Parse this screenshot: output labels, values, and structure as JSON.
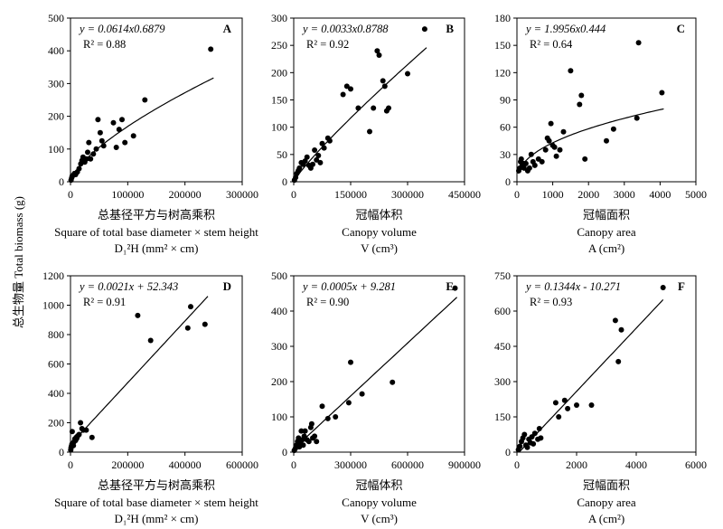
{
  "y_axis_label": "总生物量 Total  biomass (g)",
  "chart_data": [
    {
      "panel": "A",
      "type": "scatter",
      "equation": "y = 0.0614x0.6879",
      "r2": "R² = 0.88",
      "xlabel_cn": "总基径平方与树高乘积",
      "xlabel_en": "Square of total base diameter × stem height",
      "xlabel_sym": "D₁²H (mm² × cm)",
      "xlim": [
        0,
        300000
      ],
      "ylim": [
        0,
        500
      ],
      "xticks": [
        0,
        100000,
        200000,
        300000
      ],
      "yticks": [
        0,
        100,
        200,
        300,
        400,
        500
      ],
      "fit": {
        "kind": "power",
        "a": 0.0614,
        "b": 0.6879,
        "x_range": [
          2000,
          250000
        ]
      },
      "points": [
        [
          1000,
          5
        ],
        [
          2000,
          12
        ],
        [
          3000,
          18
        ],
        [
          5000,
          20
        ],
        [
          7000,
          25
        ],
        [
          9000,
          22
        ],
        [
          12000,
          30
        ],
        [
          15000,
          40
        ],
        [
          18000,
          55
        ],
        [
          20000,
          65
        ],
        [
          22000,
          75
        ],
        [
          25000,
          60
        ],
        [
          28000,
          70
        ],
        [
          30000,
          90
        ],
        [
          32000,
          120
        ],
        [
          35000,
          70
        ],
        [
          40000,
          85
        ],
        [
          45000,
          100
        ],
        [
          48000,
          190
        ],
        [
          52000,
          150
        ],
        [
          55000,
          125
        ],
        [
          58000,
          110
        ],
        [
          75000,
          180
        ],
        [
          80000,
          105
        ],
        [
          85000,
          160
        ],
        [
          90000,
          190
        ],
        [
          95000,
          120
        ],
        [
          110000,
          140
        ],
        [
          130000,
          250
        ],
        [
          245000,
          405
        ]
      ]
    },
    {
      "panel": "B",
      "type": "scatter",
      "equation": "y = 0.0033x0.8788",
      "r2": "R² = 0.92",
      "xlabel_cn": "冠幅体积",
      "xlabel_en": "Canopy volume",
      "xlabel_sym": "V (cm³)",
      "xlim": [
        0,
        450000
      ],
      "ylim": [
        0,
        300
      ],
      "xticks": [
        0,
        150000,
        300000,
        450000
      ],
      "yticks": [
        0,
        50,
        100,
        150,
        200,
        250,
        300
      ],
      "fit": {
        "kind": "power",
        "a": 0.0033,
        "b": 0.8788,
        "x_range": [
          1000,
          350000
        ]
      },
      "points": [
        [
          2000,
          3
        ],
        [
          5000,
          8
        ],
        [
          8000,
          15
        ],
        [
          12000,
          20
        ],
        [
          15000,
          25
        ],
        [
          20000,
          35
        ],
        [
          25000,
          32
        ],
        [
          30000,
          38
        ],
        [
          35000,
          45
        ],
        [
          40000,
          30
        ],
        [
          45000,
          25
        ],
        [
          50000,
          32
        ],
        [
          55000,
          58
        ],
        [
          60000,
          40
        ],
        [
          65000,
          48
        ],
        [
          70000,
          35
        ],
        [
          75000,
          70
        ],
        [
          80000,
          62
        ],
        [
          90000,
          80
        ],
        [
          95000,
          75
        ],
        [
          130000,
          160
        ],
        [
          140000,
          175
        ],
        [
          150000,
          170
        ],
        [
          170000,
          135
        ],
        [
          200000,
          92
        ],
        [
          210000,
          135
        ],
        [
          220000,
          240
        ],
        [
          225000,
          232
        ],
        [
          235000,
          185
        ],
        [
          240000,
          175
        ],
        [
          245000,
          130
        ],
        [
          250000,
          135
        ],
        [
          300000,
          198
        ],
        [
          345000,
          280
        ]
      ]
    },
    {
      "panel": "C",
      "type": "scatter",
      "equation": "y = 1.9956x0.444",
      "r2": "R² = 0.64",
      "xlabel_cn": "冠幅面积",
      "xlabel_en": "Canopy area",
      "xlabel_sym": "A (cm²)",
      "xlim": [
        0,
        5000
      ],
      "ylim": [
        0,
        180
      ],
      "xticks": [
        0,
        1000,
        2000,
        3000,
        4000,
        5000
      ],
      "yticks": [
        0,
        30,
        60,
        90,
        120,
        150,
        180
      ],
      "fit": {
        "kind": "power",
        "a": 1.9956,
        "b": 0.444,
        "x_range": [
          30,
          4100
        ]
      },
      "points": [
        [
          50,
          12
        ],
        [
          80,
          15
        ],
        [
          100,
          22
        ],
        [
          120,
          25
        ],
        [
          150,
          18
        ],
        [
          180,
          20
        ],
        [
          200,
          15
        ],
        [
          250,
          20
        ],
        [
          300,
          12
        ],
        [
          350,
          15
        ],
        [
          400,
          30
        ],
        [
          450,
          22
        ],
        [
          500,
          18
        ],
        [
          600,
          25
        ],
        [
          700,
          22
        ],
        [
          800,
          35
        ],
        [
          850,
          48
        ],
        [
          900,
          45
        ],
        [
          950,
          64
        ],
        [
          1000,
          40
        ],
        [
          1050,
          38
        ],
        [
          1100,
          28
        ],
        [
          1200,
          35
        ],
        [
          1300,
          55
        ],
        [
          1500,
          122
        ],
        [
          1750,
          85
        ],
        [
          1800,
          95
        ],
        [
          1900,
          25
        ],
        [
          2500,
          45
        ],
        [
          2700,
          58
        ],
        [
          3350,
          70
        ],
        [
          3400,
          153
        ],
        [
          4050,
          98
        ]
      ]
    },
    {
      "panel": "D",
      "type": "scatter",
      "equation": "y = 0.0021x + 52.343",
      "r2": "R² = 0.91",
      "xlabel_cn": "总基径平方与树高乘积",
      "xlabel_en": "Square of total base diameter × stem height",
      "xlabel_sym": "D₁²H (mm² × cm)",
      "xlim": [
        0,
        600000
      ],
      "ylim": [
        0,
        1200
      ],
      "xticks": [
        0,
        200000,
        400000,
        600000
      ],
      "yticks": [
        0,
        200,
        400,
        600,
        800,
        1000,
        1200
      ],
      "fit": {
        "kind": "linear",
        "a": 0.0021,
        "b": 52.343,
        "x_range": [
          0,
          480000
        ]
      },
      "points": [
        [
          1000,
          15
        ],
        [
          2000,
          30
        ],
        [
          3000,
          40
        ],
        [
          5000,
          55
        ],
        [
          6000,
          140
        ],
        [
          8000,
          60
        ],
        [
          10000,
          45
        ],
        [
          12000,
          70
        ],
        [
          15000,
          90
        ],
        [
          18000,
          80
        ],
        [
          20000,
          100
        ],
        [
          22000,
          95
        ],
        [
          25000,
          110
        ],
        [
          30000,
          120
        ],
        [
          35000,
          200
        ],
        [
          40000,
          160
        ],
        [
          45000,
          150
        ],
        [
          55000,
          150
        ],
        [
          75000,
          100
        ],
        [
          235000,
          930
        ],
        [
          280000,
          760
        ],
        [
          410000,
          845
        ],
        [
          420000,
          990
        ],
        [
          470000,
          870
        ]
      ]
    },
    {
      "panel": "E",
      "type": "scatter",
      "equation": "y = 0.0005x + 9.281",
      "r2": "R² = 0.90",
      "xlabel_cn": "冠幅体积",
      "xlabel_en": "Canopy volume",
      "xlabel_sym": "V (cm³)",
      "xlim": [
        0,
        900000
      ],
      "ylim": [
        0,
        500
      ],
      "xticks": [
        0,
        300000,
        600000,
        900000
      ],
      "yticks": [
        0,
        100,
        200,
        300,
        400,
        500
      ],
      "fit": {
        "kind": "linear",
        "a": 0.0005,
        "b": 9.281,
        "x_range": [
          0,
          860000
        ]
      },
      "points": [
        [
          3000,
          5
        ],
        [
          8000,
          10
        ],
        [
          15000,
          20
        ],
        [
          20000,
          30
        ],
        [
          25000,
          40
        ],
        [
          30000,
          15
        ],
        [
          35000,
          25
        ],
        [
          40000,
          60
        ],
        [
          45000,
          35
        ],
        [
          50000,
          20
        ],
        [
          55000,
          45
        ],
        [
          60000,
          60
        ],
        [
          70000,
          35
        ],
        [
          80000,
          30
        ],
        [
          90000,
          70
        ],
        [
          95000,
          80
        ],
        [
          100000,
          40
        ],
        [
          110000,
          45
        ],
        [
          120000,
          30
        ],
        [
          150000,
          130
        ],
        [
          180000,
          95
        ],
        [
          220000,
          100
        ],
        [
          290000,
          140
        ],
        [
          300000,
          255
        ],
        [
          360000,
          165
        ],
        [
          520000,
          198
        ],
        [
          850000,
          465
        ]
      ]
    },
    {
      "panel": "F",
      "type": "scatter",
      "equation": "y = 0.1344x - 10.271",
      "r2": "R² = 0.93",
      "xlabel_cn": "冠幅面积",
      "xlabel_en": "Canopy area",
      "xlabel_sym": "A (cm²)",
      "xlim": [
        0,
        6000
      ],
      "ylim": [
        0,
        750
      ],
      "xticks": [
        0,
        2000,
        4000,
        6000
      ],
      "yticks": [
        0,
        150,
        300,
        450,
        600,
        750
      ],
      "fit": {
        "kind": "linear",
        "a": 0.1344,
        "b": -10.271,
        "x_range": [
          100,
          4900
        ]
      },
      "points": [
        [
          50,
          10
        ],
        [
          100,
          25
        ],
        [
          150,
          45
        ],
        [
          200,
          60
        ],
        [
          250,
          75
        ],
        [
          300,
          30
        ],
        [
          350,
          20
        ],
        [
          400,
          55
        ],
        [
          450,
          40
        ],
        [
          500,
          65
        ],
        [
          550,
          35
        ],
        [
          600,
          80
        ],
        [
          700,
          55
        ],
        [
          750,
          100
        ],
        [
          800,
          60
        ],
        [
          1300,
          210
        ],
        [
          1400,
          150
        ],
        [
          1600,
          220
        ],
        [
          1700,
          185
        ],
        [
          2000,
          200
        ],
        [
          2500,
          200
        ],
        [
          3300,
          560
        ],
        [
          3400,
          385
        ],
        [
          3500,
          520
        ],
        [
          4900,
          700
        ]
      ]
    }
  ]
}
